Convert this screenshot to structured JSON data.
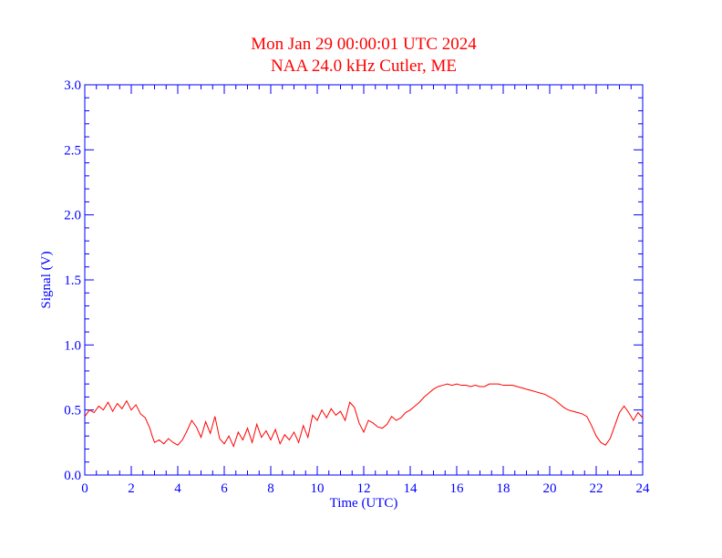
{
  "chart_data": {
    "type": "line",
    "title": "Mon Jan 29 00:00:01 UTC 2024",
    "subtitle": "NAA 24.0 kHz Cutler, ME",
    "xlabel": "Time (UTC)",
    "ylabel": "Signal (V)",
    "xlim": [
      0,
      24
    ],
    "ylim": [
      0,
      3.0
    ],
    "x_ticks": [
      0,
      2,
      4,
      6,
      8,
      10,
      12,
      14,
      16,
      18,
      20,
      22,
      24
    ],
    "x_tick_labels": [
      "0",
      "2",
      "4",
      "6",
      "8",
      "10",
      "12",
      "14",
      "16",
      "18",
      "20",
      "22",
      "24"
    ],
    "y_ticks": [
      0,
      0.5,
      1.0,
      1.5,
      2.0,
      2.5,
      3.0
    ],
    "y_tick_labels": [
      "0.0",
      "0.5",
      "1.0",
      "1.5",
      "2.0",
      "2.5",
      "3.0"
    ],
    "grid": false,
    "colors": {
      "axis": "#0000ff",
      "series": "#ff0000",
      "title": "#ff0000"
    },
    "series": [
      {
        "x": [
          0,
          0.2,
          0.4,
          0.6,
          0.8,
          1.0,
          1.2,
          1.4,
          1.6,
          1.8,
          2.0,
          2.2,
          2.4,
          2.6,
          2.8,
          2.9,
          3.0,
          3.2,
          3.4,
          3.6,
          3.8,
          4.0,
          4.2,
          4.4,
          4.6,
          4.8,
          5.0,
          5.2,
          5.4,
          5.6,
          5.8,
          6.0,
          6.2,
          6.4,
          6.6,
          6.8,
          7.0,
          7.2,
          7.4,
          7.6,
          7.8,
          8.0,
          8.2,
          8.4,
          8.6,
          8.8,
          9.0,
          9.2,
          9.4,
          9.6,
          9.8,
          10.0,
          10.2,
          10.4,
          10.6,
          10.8,
          11.0,
          11.2,
          11.4,
          11.6,
          11.8,
          12.0,
          12.2,
          12.4,
          12.6,
          12.8,
          13.0,
          13.2,
          13.4,
          13.6,
          13.8,
          14.0,
          14.2,
          14.4,
          14.6,
          14.8,
          15.0,
          15.2,
          15.4,
          15.6,
          15.8,
          16.0,
          16.2,
          16.4,
          16.6,
          16.8,
          17.0,
          17.2,
          17.4,
          17.6,
          17.8,
          18.0,
          18.2,
          18.4,
          18.6,
          18.8,
          19.0,
          19.2,
          19.4,
          19.6,
          19.8,
          20.0,
          20.2,
          20.4,
          20.6,
          20.8,
          21.0,
          21.2,
          21.4,
          21.6,
          21.8,
          22.0,
          22.2,
          22.4,
          22.6,
          22.8,
          23.0,
          23.2,
          23.4,
          23.6,
          23.8,
          24.0
        ],
        "values": [
          0.45,
          0.5,
          0.48,
          0.53,
          0.5,
          0.56,
          0.49,
          0.55,
          0.51,
          0.57,
          0.5,
          0.54,
          0.47,
          0.44,
          0.36,
          0.3,
          0.25,
          0.27,
          0.24,
          0.28,
          0.25,
          0.23,
          0.27,
          0.34,
          0.42,
          0.37,
          0.29,
          0.41,
          0.32,
          0.45,
          0.28,
          0.24,
          0.3,
          0.22,
          0.33,
          0.27,
          0.36,
          0.25,
          0.39,
          0.29,
          0.34,
          0.27,
          0.35,
          0.24,
          0.31,
          0.27,
          0.33,
          0.25,
          0.38,
          0.29,
          0.46,
          0.42,
          0.5,
          0.44,
          0.51,
          0.46,
          0.49,
          0.42,
          0.56,
          0.52,
          0.4,
          0.33,
          0.42,
          0.4,
          0.37,
          0.36,
          0.39,
          0.45,
          0.42,
          0.44,
          0.48,
          0.5,
          0.53,
          0.56,
          0.6,
          0.63,
          0.66,
          0.68,
          0.69,
          0.7,
          0.69,
          0.7,
          0.69,
          0.69,
          0.68,
          0.69,
          0.68,
          0.68,
          0.7,
          0.7,
          0.7,
          0.69,
          0.69,
          0.69,
          0.68,
          0.67,
          0.66,
          0.65,
          0.64,
          0.63,
          0.62,
          0.6,
          0.58,
          0.55,
          0.52,
          0.5,
          0.49,
          0.48,
          0.47,
          0.45,
          0.38,
          0.3,
          0.25,
          0.23,
          0.28,
          0.38,
          0.48,
          0.53,
          0.48,
          0.42,
          0.48,
          0.44
        ]
      }
    ]
  }
}
